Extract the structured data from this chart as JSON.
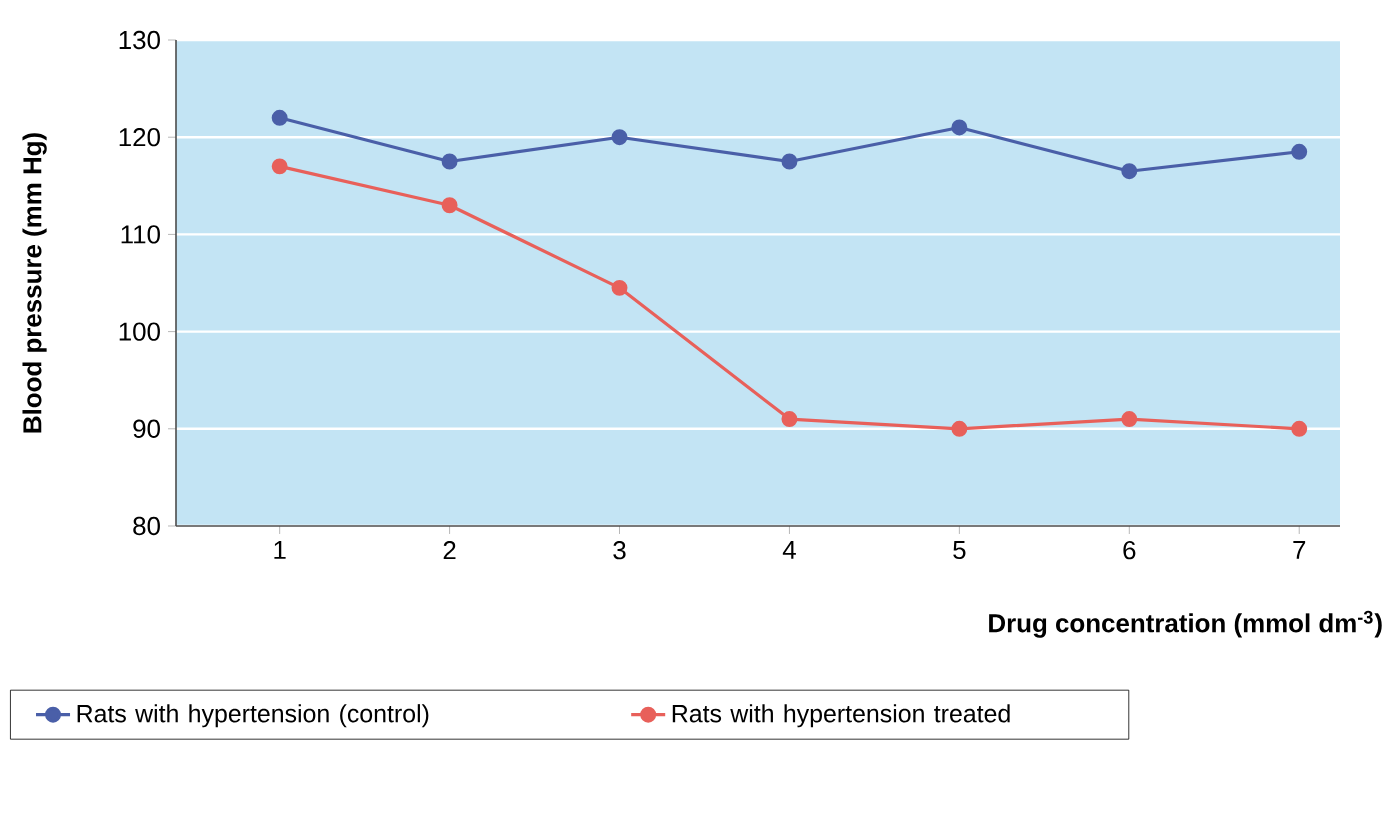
{
  "chart_data": {
    "type": "line",
    "xlabel": "Drug concentration (mmol dm$^{-3}$)",
    "ylabel": "Blood pressure (mm Hg)",
    "categories": [
      "1",
      "2",
      "3",
      "4",
      "5",
      "6",
      "7"
    ],
    "series": [
      {
        "name": "Rats with hypertension (control)",
        "color": "#4a5fa8",
        "values": [
          122,
          117.5,
          120,
          117.5,
          121,
          116.5,
          118.5
        ]
      },
      {
        "name": "Rats with hypertension treated",
        "color": "#e8605a",
        "values": [
          117,
          113,
          104.5,
          91,
          90,
          91,
          90
        ]
      }
    ],
    "ylim": [
      80,
      130
    ],
    "yticks": [
      80,
      90,
      100,
      110,
      120,
      130
    ],
    "grid": "y",
    "legend": "bottom",
    "marker": "circle",
    "line_style": "solid"
  }
}
